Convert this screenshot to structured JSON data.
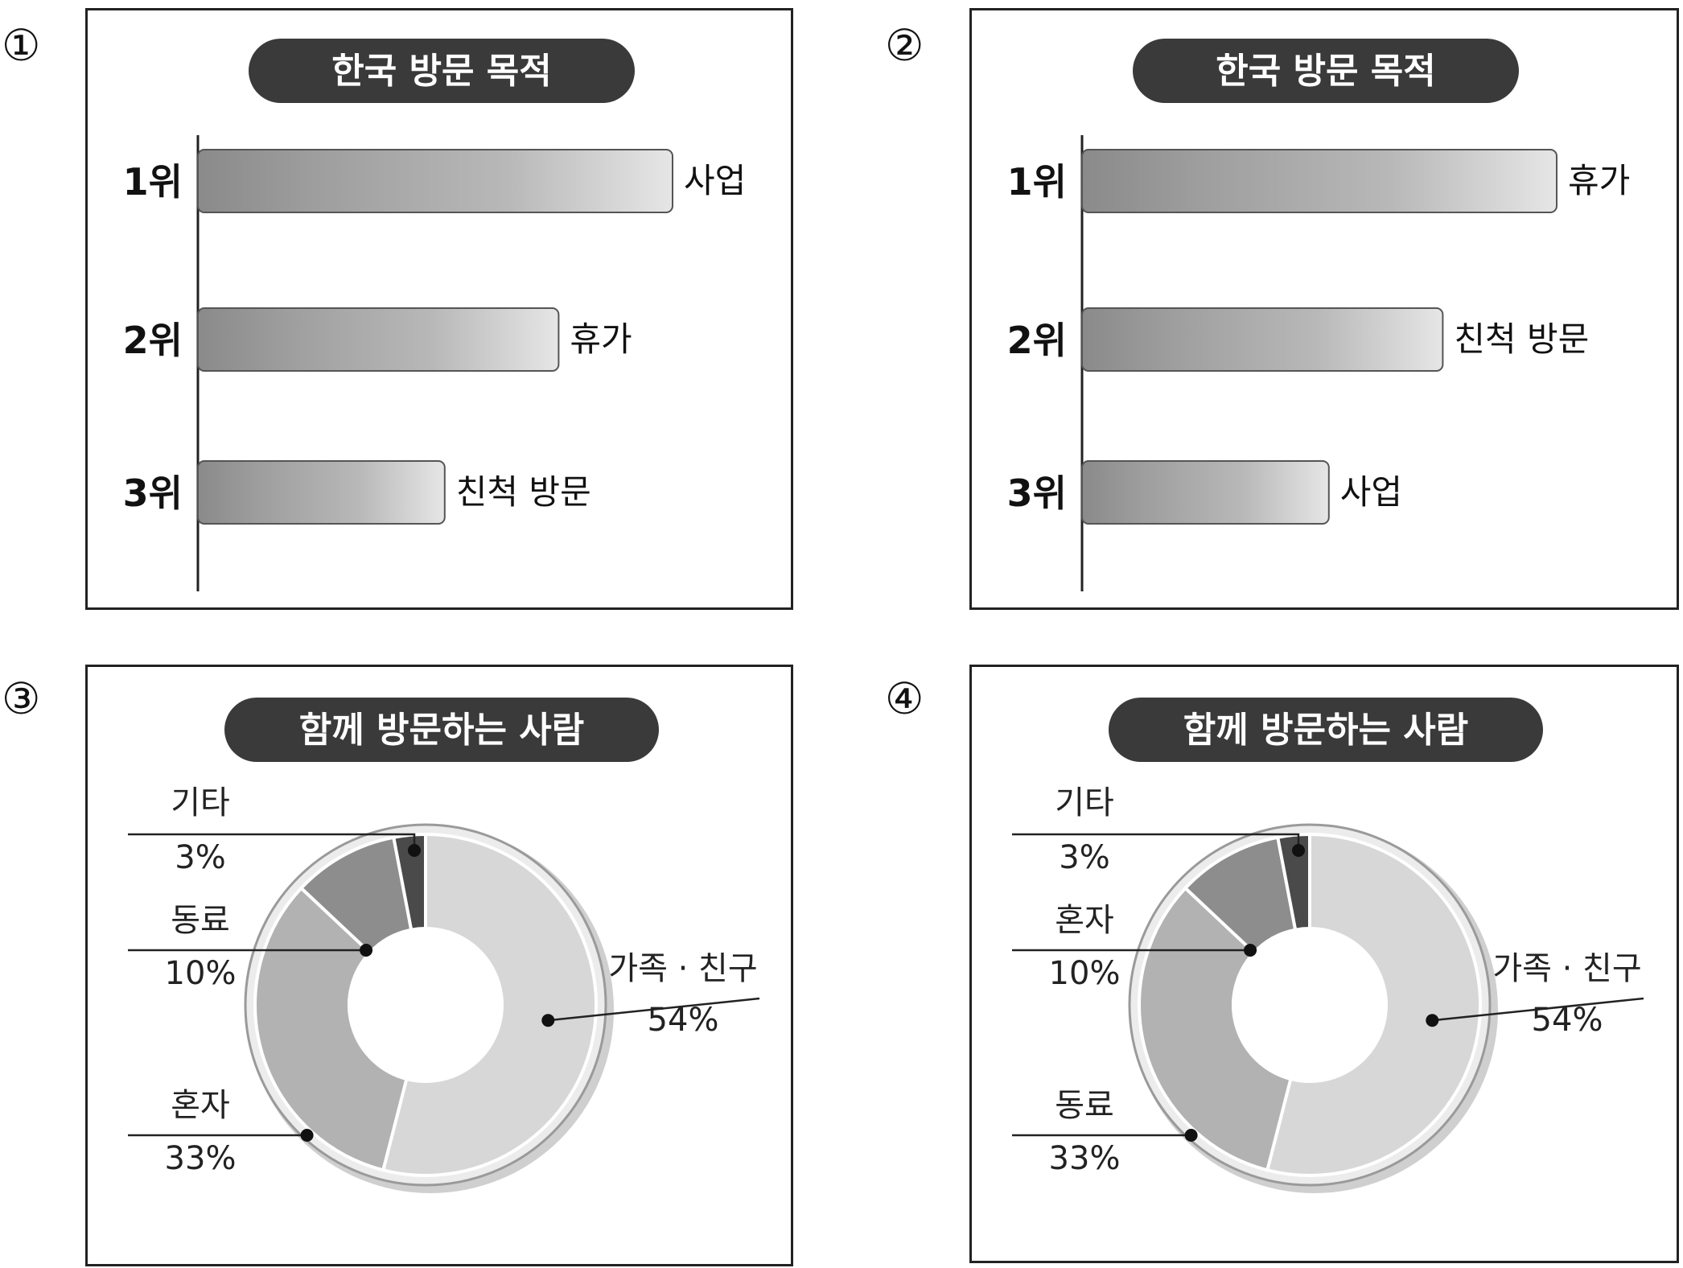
{
  "options": [
    {
      "number": "①",
      "chart_data": {
        "type": "bar",
        "title": "한국 방문 목적",
        "ranks": [
          "1위",
          "2위",
          "3위"
        ],
        "categories": [
          "사업",
          "휴가",
          "친척 방문"
        ],
        "relative_values": [
          1.0,
          0.76,
          0.52
        ]
      }
    },
    {
      "number": "②",
      "chart_data": {
        "type": "bar",
        "title": "한국 방문 목적",
        "ranks": [
          "1위",
          "2위",
          "3위"
        ],
        "categories": [
          "휴가",
          "친척 방문",
          "사업"
        ],
        "relative_values": [
          1.0,
          0.76,
          0.52
        ]
      }
    },
    {
      "number": "③",
      "chart_data": {
        "type": "pie",
        "title": "함께 방문하는 사람",
        "slices": [
          {
            "label": "가족 · 친구",
            "value_text": "54%",
            "value": 54,
            "color": "#d7d7d7"
          },
          {
            "label": "혼자",
            "value_text": "33%",
            "value": 33,
            "color": "#b2b2b2"
          },
          {
            "label": "동료",
            "value_text": "10%",
            "value": 10,
            "color": "#8d8d8d"
          },
          {
            "label": "기타",
            "value_text": "3%",
            "value": 3,
            "color": "#4a4a4a"
          }
        ]
      }
    },
    {
      "number": "④",
      "chart_data": {
        "type": "pie",
        "title": "함께 방문하는 사람",
        "slices": [
          {
            "label": "가족 · 친구",
            "value_text": "54%",
            "value": 54,
            "color": "#d7d7d7"
          },
          {
            "label": "동료",
            "value_text": "33%",
            "value": 33,
            "color": "#b2b2b2"
          },
          {
            "label": "혼자",
            "value_text": "10%",
            "value": 10,
            "color": "#8d8d8d"
          },
          {
            "label": "기타",
            "value_text": "3%",
            "value": 3,
            "color": "#4a4a4a"
          }
        ]
      }
    }
  ]
}
